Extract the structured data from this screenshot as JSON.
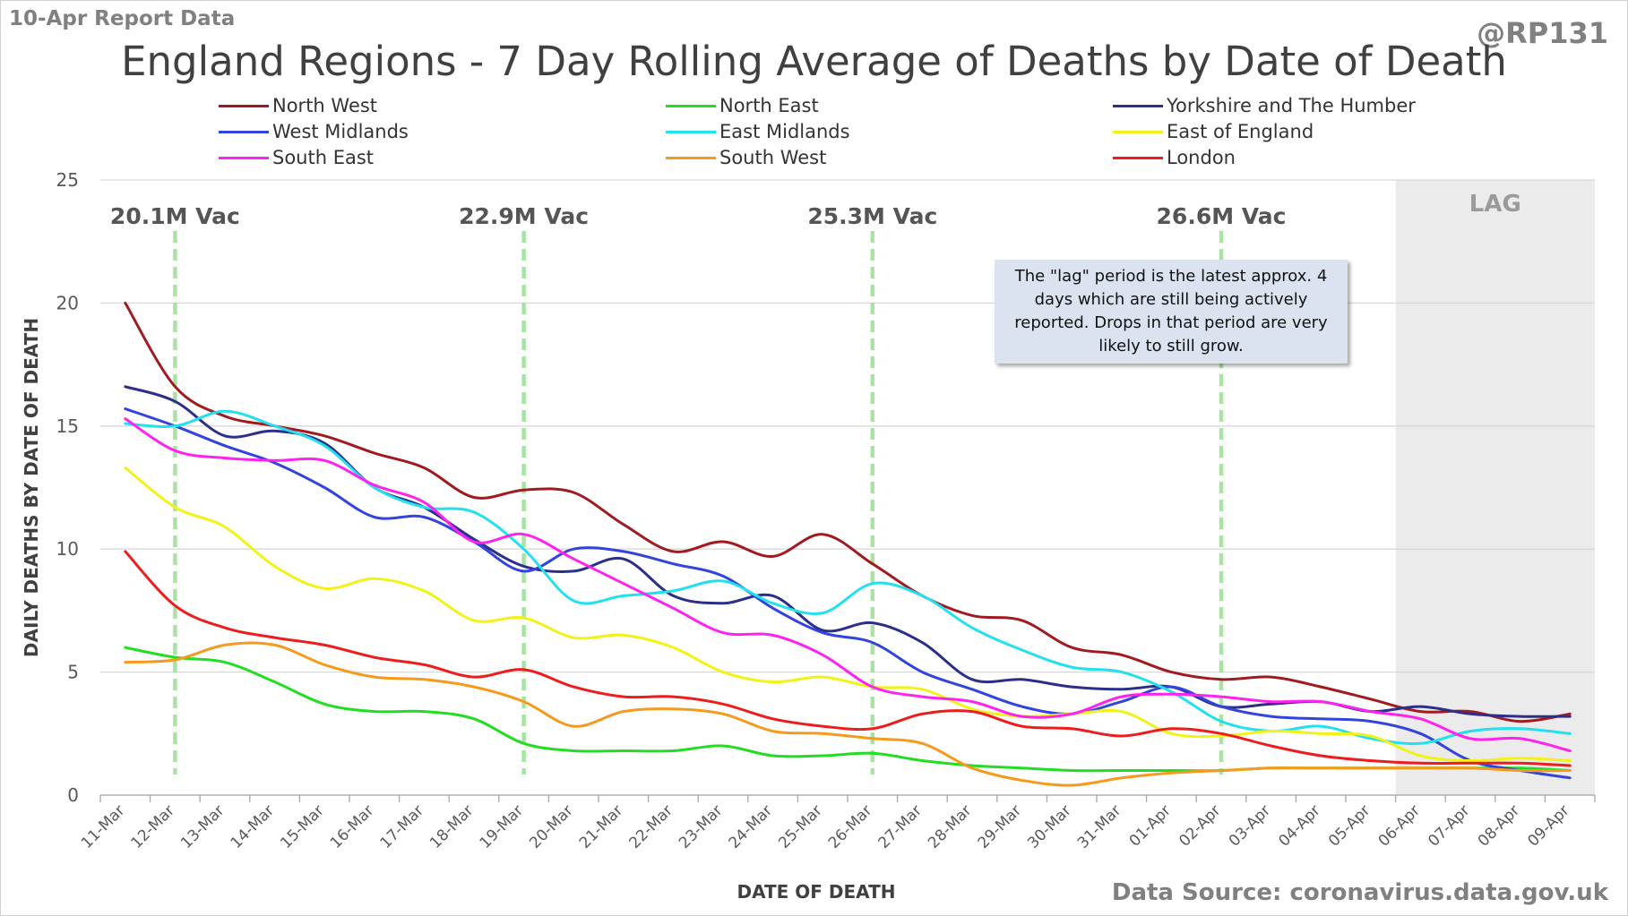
{
  "header": {
    "report_label": "10-Apr Report Data",
    "handle": "@RP131",
    "source": "Data Source: coronavirus.data.gov.uk"
  },
  "chart_data": {
    "type": "line",
    "title": "England Regions - 7 Day Rolling Average of Deaths by Date of Death",
    "xlabel": "DATE OF DEATH",
    "ylabel": "DAILY DEATHS BY DATE OF DEATH",
    "ylim": [
      0,
      25
    ],
    "yticks": [
      0,
      5,
      10,
      15,
      20,
      25
    ],
    "grid": "horizontal",
    "legend_position": "top",
    "categories": [
      "11-Mar",
      "12-Mar",
      "13-Mar",
      "14-Mar",
      "15-Mar",
      "16-Mar",
      "17-Mar",
      "18-Mar",
      "19-Mar",
      "20-Mar",
      "21-Mar",
      "22-Mar",
      "23-Mar",
      "24-Mar",
      "25-Mar",
      "26-Mar",
      "27-Mar",
      "28-Mar",
      "29-Mar",
      "30-Mar",
      "31-Mar",
      "01-Apr",
      "02-Apr",
      "03-Apr",
      "04-Apr",
      "05-Apr",
      "06-Apr",
      "07-Apr",
      "08-Apr",
      "09-Apr"
    ],
    "series": [
      {
        "name": "North West",
        "color": "#a11a1f",
        "values": [
          20.0,
          16.6,
          15.4,
          15.0,
          14.6,
          13.9,
          13.3,
          12.1,
          12.4,
          12.3,
          11.0,
          9.9,
          10.3,
          9.7,
          10.6,
          9.4,
          8.1,
          7.3,
          7.1,
          6.0,
          5.7,
          5.0,
          4.7,
          4.8,
          4.4,
          3.9,
          3.4,
          3.4,
          3.0,
          3.3
        ]
      },
      {
        "name": "North East",
        "color": "#22dd22",
        "values": [
          6.0,
          5.6,
          5.4,
          4.6,
          3.7,
          3.4,
          3.4,
          3.1,
          2.1,
          1.8,
          1.8,
          1.8,
          2.0,
          1.6,
          1.6,
          1.7,
          1.4,
          1.2,
          1.1,
          1.0,
          1.0,
          1.0,
          1.0,
          1.1,
          1.1,
          1.1,
          1.1,
          1.1,
          1.1,
          1.0
        ]
      },
      {
        "name": "Yorkshire and The Humber",
        "color": "#2b2f8a",
        "values": [
          16.6,
          16.0,
          14.6,
          14.8,
          14.3,
          12.5,
          11.7,
          10.4,
          9.3,
          9.1,
          9.6,
          8.1,
          7.8,
          8.1,
          6.7,
          7.0,
          6.2,
          4.7,
          4.7,
          4.4,
          4.3,
          4.4,
          3.6,
          3.7,
          3.8,
          3.4,
          3.6,
          3.3,
          3.2,
          3.2
        ]
      },
      {
        "name": "West Midlands",
        "color": "#3344dd",
        "values": [
          15.7,
          15.0,
          14.2,
          13.5,
          12.5,
          11.3,
          11.3,
          10.3,
          9.1,
          10.0,
          9.9,
          9.4,
          8.9,
          7.6,
          6.6,
          6.2,
          5.0,
          4.3,
          3.6,
          3.3,
          3.8,
          4.4,
          3.6,
          3.2,
          3.1,
          3.0,
          2.5,
          1.4,
          1.0,
          0.7
        ]
      },
      {
        "name": "East Midlands",
        "color": "#22e0ee",
        "values": [
          15.1,
          15.0,
          15.6,
          15.0,
          14.2,
          12.5,
          11.7,
          11.5,
          10.0,
          7.9,
          8.1,
          8.3,
          8.7,
          7.8,
          7.4,
          8.6,
          8.1,
          6.8,
          5.9,
          5.2,
          5.0,
          4.2,
          3.0,
          2.6,
          2.8,
          2.3,
          2.1,
          2.6,
          2.7,
          2.5
        ]
      },
      {
        "name": "East of England",
        "color": "#f2f218",
        "values": [
          13.3,
          11.7,
          10.9,
          9.3,
          8.4,
          8.8,
          8.3,
          7.1,
          7.2,
          6.4,
          6.5,
          6.0,
          5.0,
          4.6,
          4.8,
          4.4,
          4.3,
          3.5,
          3.2,
          3.3,
          3.4,
          2.5,
          2.4,
          2.6,
          2.5,
          2.4,
          1.6,
          1.4,
          1.5,
          1.4
        ]
      },
      {
        "name": "South East",
        "color": "#ff22ee",
        "values": [
          15.3,
          14.0,
          13.7,
          13.6,
          13.6,
          12.6,
          11.9,
          10.3,
          10.6,
          9.6,
          8.6,
          7.6,
          6.6,
          6.5,
          5.7,
          4.4,
          4.0,
          3.8,
          3.2,
          3.3,
          4.0,
          4.1,
          4.0,
          3.8,
          3.8,
          3.4,
          3.1,
          2.3,
          2.3,
          1.8
        ]
      },
      {
        "name": "South West",
        "color": "#f59a1c",
        "values": [
          5.4,
          5.5,
          6.1,
          6.1,
          5.3,
          4.8,
          4.7,
          4.4,
          3.8,
          2.8,
          3.4,
          3.5,
          3.3,
          2.6,
          2.5,
          2.3,
          2.1,
          1.1,
          0.6,
          0.4,
          0.7,
          0.9,
          1.0,
          1.1,
          1.1,
          1.1,
          1.1,
          1.1,
          1.0,
          1.0
        ]
      },
      {
        "name": "London",
        "color": "#ee1c1c",
        "values": [
          9.9,
          7.7,
          6.8,
          6.4,
          6.1,
          5.6,
          5.3,
          4.8,
          5.1,
          4.4,
          4.0,
          4.0,
          3.7,
          3.1,
          2.8,
          2.7,
          3.3,
          3.4,
          2.8,
          2.7,
          2.4,
          2.7,
          2.5,
          2.0,
          1.6,
          1.4,
          1.3,
          1.3,
          1.3,
          1.2
        ]
      }
    ],
    "vaccine_markers": [
      {
        "label": "20.1M Vac",
        "x": "12-Mar"
      },
      {
        "label": "22.9M Vac",
        "x": "19-Mar"
      },
      {
        "label": "25.3M Vac",
        "x": "26-Mar"
      },
      {
        "label": "26.6M Vac",
        "x": "02-Apr"
      }
    ],
    "lag": {
      "label": "LAG",
      "start": "06-Apr",
      "end": "09-Apr"
    },
    "annotation": "The \"lag\" period is the latest approx. 4 days which are still being actively reported.  Drops in that period are very likely to still grow."
  }
}
